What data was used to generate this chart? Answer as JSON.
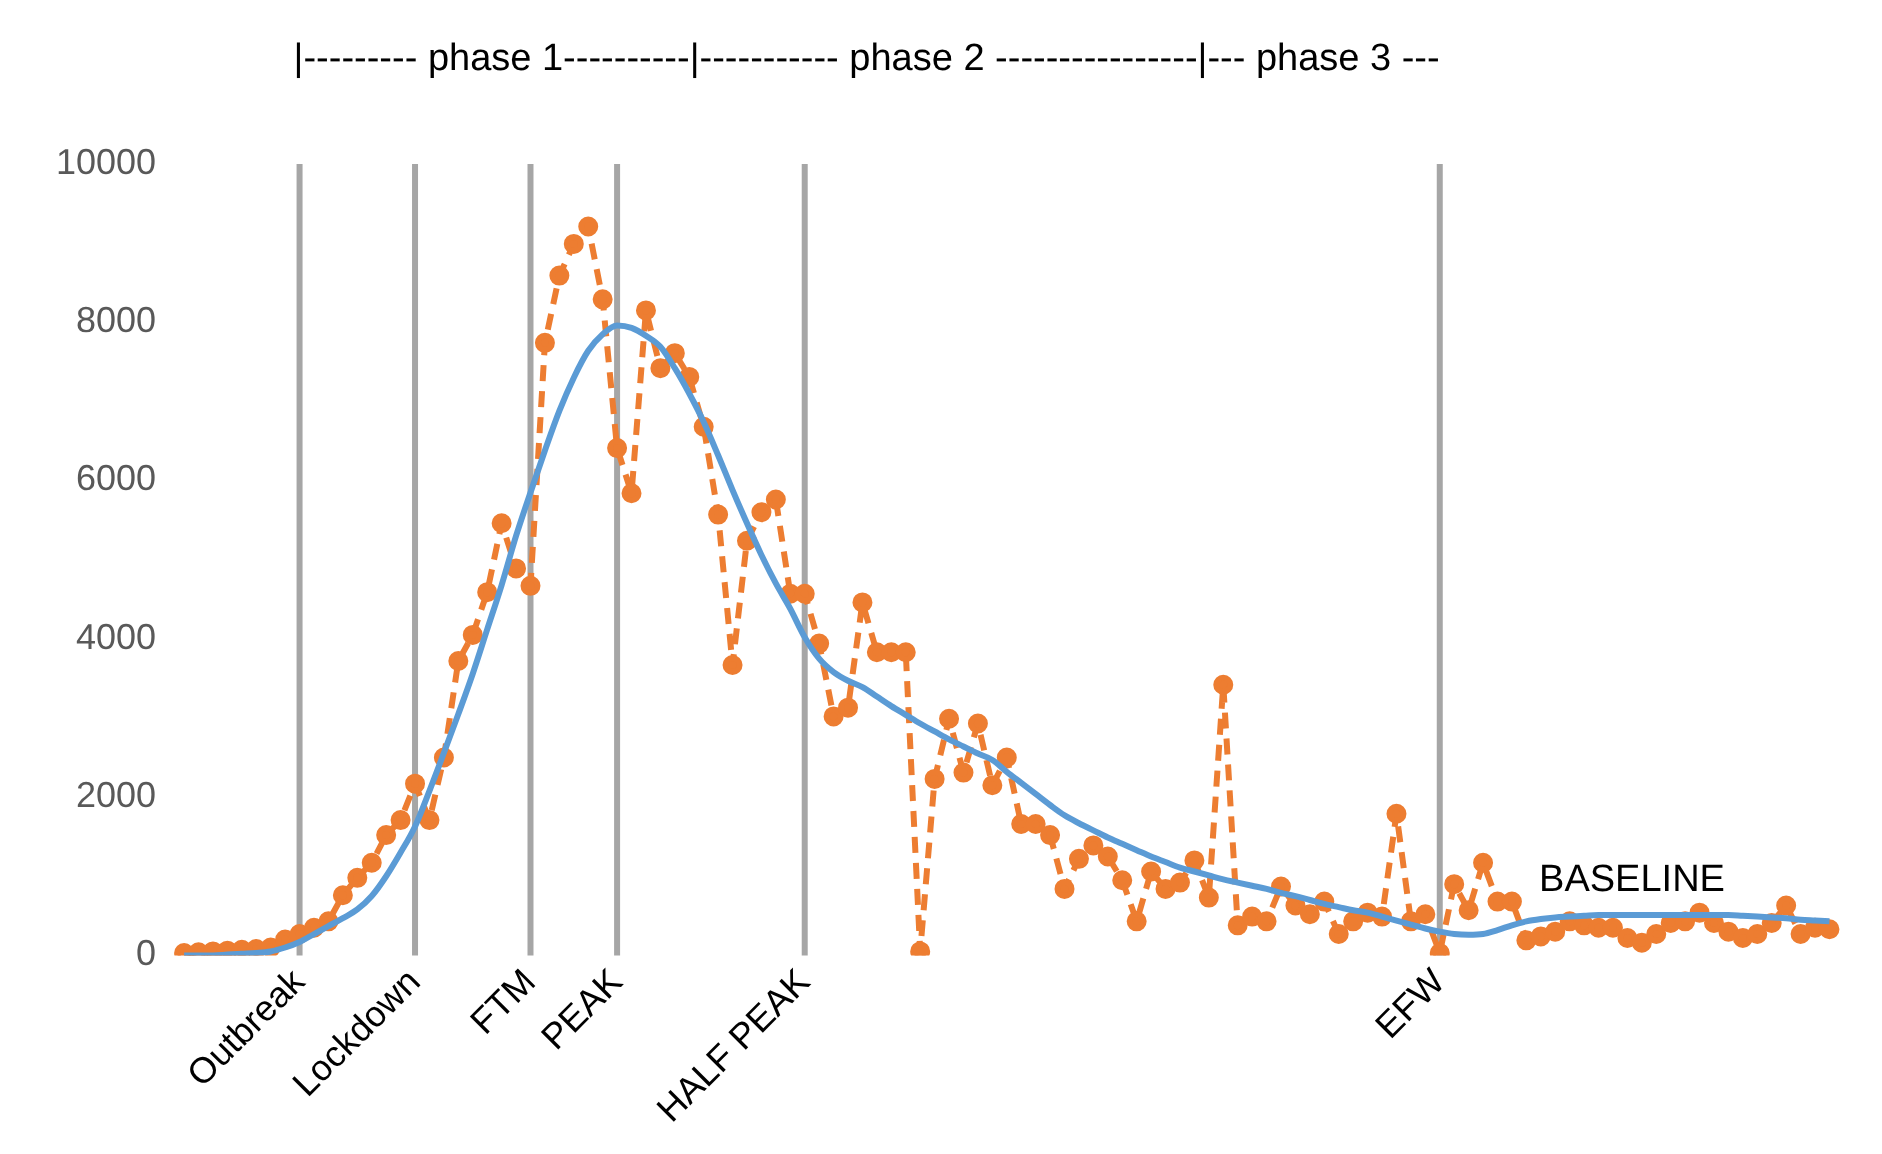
{
  "chart_data": {
    "type": "line",
    "categories": [
      null,
      null,
      null,
      null,
      null,
      null,
      null,
      null,
      "Outbreak",
      null,
      null,
      null,
      null,
      null,
      null,
      null,
      "Lockdown",
      null,
      null,
      null,
      null,
      null,
      null,
      null,
      "FTM",
      null,
      null,
      null,
      null,
      null,
      "PEAK",
      null,
      null,
      null,
      null,
      null,
      null,
      null,
      null,
      null,
      null,
      null,
      null,
      "HALF PEAK",
      null,
      null,
      null,
      null,
      null,
      null,
      null,
      null,
      null,
      null,
      null,
      null,
      null,
      null,
      null,
      null,
      null,
      null,
      null,
      null,
      null,
      null,
      null,
      null,
      null,
      null,
      null,
      null,
      null,
      null,
      null,
      null,
      null,
      null,
      null,
      null,
      null,
      null,
      null,
      null,
      null,
      null,
      null,
      "EFW",
      null,
      null,
      null,
      null,
      null,
      null,
      null,
      null,
      null,
      null,
      null,
      null,
      null,
      null,
      null,
      null,
      null,
      null,
      null,
      null,
      null,
      null,
      null,
      null,
      null,
      null,
      null
    ],
    "series": [
      {
        "color": "#5b9bd5",
        "line_style": "solid",
        "marker": "none",
        "values": [
          0,
          0,
          0,
          10,
          20,
          30,
          50,
          100,
          170,
          270,
          370,
          470,
          580,
          750,
          1000,
          1300,
          1630,
          2080,
          2560,
          3050,
          3560,
          4120,
          4680,
          5300,
          5850,
          6380,
          6880,
          7300,
          7640,
          7850,
          7960,
          7930,
          7830,
          7690,
          7420,
          7100,
          6740,
          6320,
          5880,
          5460,
          5060,
          4700,
          4380,
          4020,
          3750,
          3580,
          3470,
          3390,
          3270,
          3150,
          3040,
          2930,
          2830,
          2730,
          2640,
          2550,
          2470,
          2320,
          2180,
          2040,
          1900,
          1770,
          1670,
          1580,
          1490,
          1410,
          1330,
          1250,
          1180,
          1110,
          1060,
          1010,
          960,
          920,
          880,
          840,
          790,
          750,
          700,
          650,
          610,
          570,
          540,
          490,
          440,
          390,
          340,
          300,
          270,
          260,
          270,
          320,
          380,
          430,
          460,
          480,
          490,
          500,
          510,
          510,
          510,
          510,
          510,
          510,
          510,
          510,
          510,
          510,
          500,
          490,
          480,
          470,
          450,
          440,
          430
        ]
      },
      {
        "color": "#ed7d31",
        "line_style": "dashed",
        "marker": "circle",
        "values": [
          30,
          40,
          50,
          60,
          70,
          80,
          100,
          200,
          270,
          350,
          430,
          760,
          980,
          1170,
          1520,
          1710,
          2170,
          1710,
          2500,
          3720,
          4050,
          4590,
          5460,
          4890,
          4670,
          7740,
          8590,
          8990,
          9210,
          8290,
          6410,
          5840,
          8150,
          7420,
          7610,
          7310,
          6680,
          5570,
          3670,
          5240,
          5600,
          5760,
          4570,
          4570,
          3940,
          3020,
          3130,
          4460,
          3830,
          3830,
          3830,
          50,
          2230,
          2990,
          2310,
          2930,
          2150,
          2500,
          1660,
          1660,
          1520,
          840,
          1220,
          1390,
          1250,
          950,
          430,
          1060,
          840,
          920,
          1200,
          730,
          3420,
          380,
          490,
          430,
          870,
          630,
          520,
          680,
          270,
          430,
          540,
          490,
          1790,
          430,
          520,
          30,
          900,
          570,
          1170,
          680,
          680,
          190,
          240,
          300,
          430,
          380,
          350,
          350,
          220,
          160,
          270,
          410,
          430,
          540,
          410,
          300,
          220,
          270,
          410,
          630,
          270,
          350,
          330
        ]
      }
    ],
    "ylim": [
      0,
      10000
    ],
    "yticks": [
      0,
      2000,
      4000,
      6000,
      8000,
      10000
    ],
    "ref_lines": [
      {
        "axis": "x",
        "value": "Outbreak",
        "color": "#a6a6a6"
      },
      {
        "axis": "x",
        "value": "Lockdown",
        "color": "#a6a6a6"
      },
      {
        "axis": "x",
        "value": "FTM",
        "color": "#a6a6a6"
      },
      {
        "axis": "x",
        "value": "PEAK",
        "color": "#a6a6a6"
      },
      {
        "axis": "x",
        "value": "HALF PEAK",
        "color": "#a6a6a6"
      },
      {
        "axis": "x",
        "value": "EFW",
        "color": "#a6a6a6"
      }
    ],
    "legend": false,
    "annotations": [
      "|--------- phase 1----------|----------- phase 2 ----------------|--- phase 3 ---",
      {
        "text": "BASELINE",
        "y": 510
      }
    ]
  }
}
